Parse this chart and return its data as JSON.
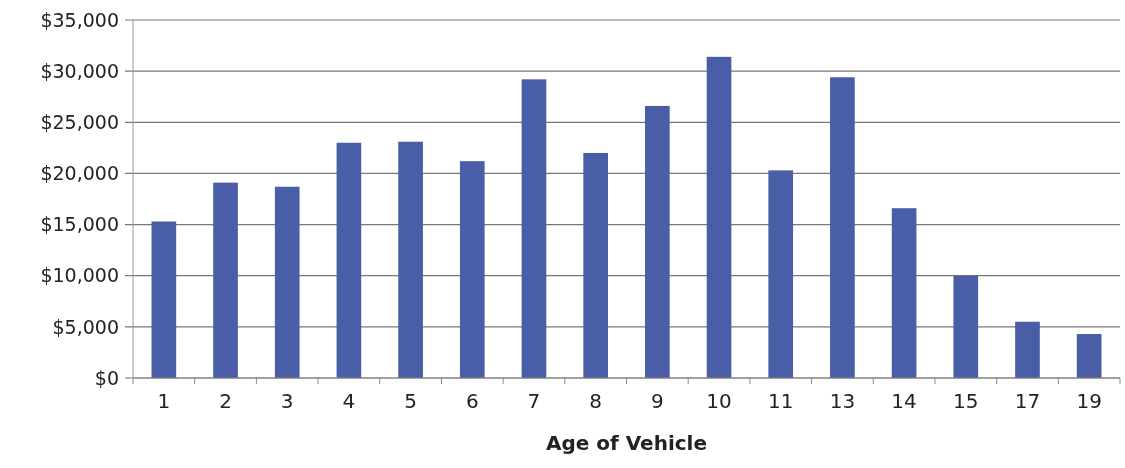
{
  "chart_data": {
    "type": "bar",
    "xlabel": "Age of Vehicle",
    "categories": [
      "1",
      "2",
      "3",
      "4",
      "5",
      "6",
      "7",
      "8",
      "9",
      "10",
      "11",
      "13",
      "14",
      "15",
      "17",
      "19"
    ],
    "values": [
      15300,
      19100,
      18700,
      23000,
      23100,
      21200,
      29200,
      22000,
      26600,
      31400,
      20300,
      29400,
      16600,
      10000,
      5500,
      4300
    ],
    "color": "#4a5ea8",
    "ylim": [
      0,
      35000
    ],
    "yticks": [
      {
        "value": 0,
        "label": "$0"
      },
      {
        "value": 5000,
        "label": "$5,000"
      },
      {
        "value": 10000,
        "label": "$10,000"
      },
      {
        "value": 15000,
        "label": "$15,000"
      },
      {
        "value": 20000,
        "label": "$20,000"
      },
      {
        "value": 25000,
        "label": "$25,000"
      },
      {
        "value": 30000,
        "label": "$30,000"
      },
      {
        "value": 35000,
        "label": "$35,000"
      }
    ],
    "grid": "y"
  }
}
